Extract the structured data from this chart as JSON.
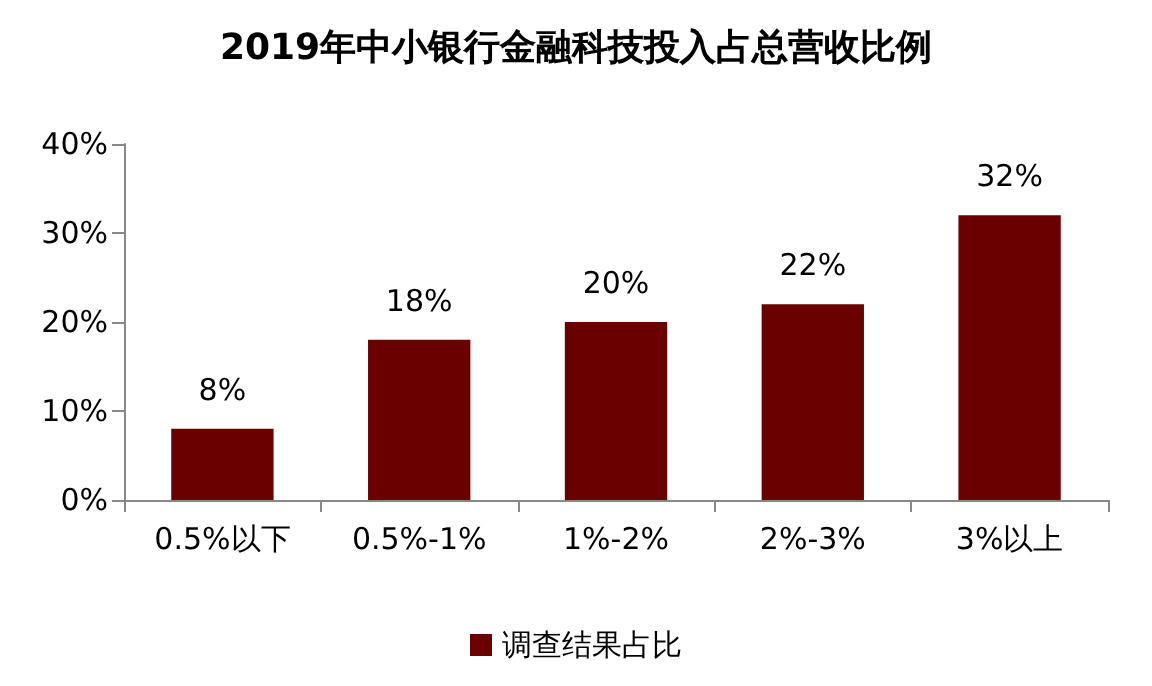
{
  "chart_data": {
    "type": "bar",
    "title": "2019年中小银行金融科技投入占总营收比例",
    "categories": [
      "0.5%以下",
      "0.5%-1%",
      "1%-2%",
      "2%-3%",
      "3%以上"
    ],
    "series": [
      {
        "name": "调查结果占比",
        "color": "#6b0000",
        "values": [
          8,
          18,
          20,
          22,
          32
        ],
        "value_labels": [
          "8%",
          "18%",
          "20%",
          "22%",
          "32%"
        ]
      }
    ],
    "ylim": [
      0,
      40
    ],
    "yticks": [
      {
        "value": 0,
        "label": "0%"
      },
      {
        "value": 10,
        "label": "10%"
      },
      {
        "value": 20,
        "label": "20%"
      },
      {
        "value": 30,
        "label": "30%"
      },
      {
        "value": 40,
        "label": "40%"
      }
    ],
    "grid": false,
    "legend": "bottom"
  }
}
